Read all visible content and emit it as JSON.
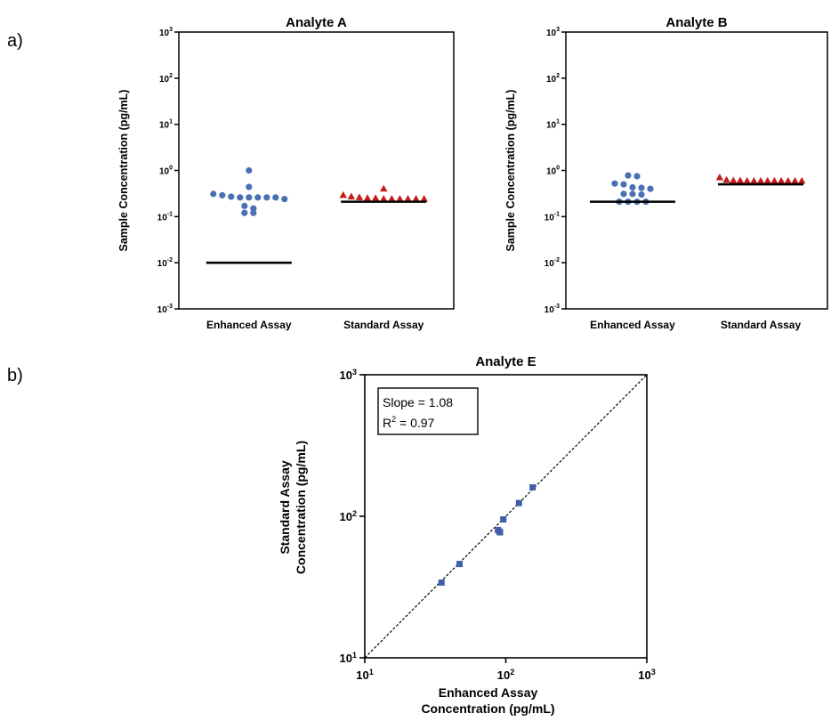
{
  "panel_labels": [
    "a)",
    "b)"
  ],
  "chart_data": [
    {
      "type": "scatter",
      "title": "Analyte A",
      "ylabel": "Sample Concentration (pg/mL)",
      "yscale": "log",
      "ylim": [
        0.001,
        1000
      ],
      "yticks": [
        {
          "base": "10",
          "exp": "3",
          "value": 1000
        },
        {
          "base": "10",
          "exp": "2",
          "value": 100
        },
        {
          "base": "10",
          "exp": "1",
          "value": 10
        },
        {
          "base": "10",
          "exp": "0",
          "value": 1
        },
        {
          "base": "10",
          "exp": "-1",
          "value": 0.1
        },
        {
          "base": "10",
          "exp": "-2",
          "value": 0.01
        },
        {
          "base": "10",
          "exp": "-3",
          "value": 0.001
        }
      ],
      "categories": [
        "Enhanced Assay",
        "Standard Assay"
      ],
      "series": [
        {
          "name": "Enhanced Assay",
          "marker": "circle",
          "color": "#4a6fb5",
          "values": [
            1.0,
            0.44,
            0.31,
            0.29,
            0.27,
            0.26,
            0.26,
            0.26,
            0.26,
            0.26,
            0.24,
            0.17,
            0.15,
            0.12,
            0.12
          ],
          "line": 0.01
        },
        {
          "name": "Standard Assay",
          "marker": "triangle",
          "color": "#c41a1a",
          "values": [
            0.4,
            0.29,
            0.27,
            0.26,
            0.25,
            0.25,
            0.24,
            0.24,
            0.24,
            0.24,
            0.24,
            0.24
          ],
          "line": 0.21
        }
      ]
    },
    {
      "type": "scatter",
      "title": "Analyte B",
      "ylabel": "Sample Concentration (pg/mL)",
      "yscale": "log",
      "ylim": [
        0.001,
        1000
      ],
      "yticks": [
        {
          "base": "10",
          "exp": "3",
          "value": 1000
        },
        {
          "base": "10",
          "exp": "2",
          "value": 100
        },
        {
          "base": "10",
          "exp": "1",
          "value": 10
        },
        {
          "base": "10",
          "exp": "0",
          "value": 1
        },
        {
          "base": "10",
          "exp": "-1",
          "value": 0.1
        },
        {
          "base": "10",
          "exp": "-2",
          "value": 0.01
        },
        {
          "base": "10",
          "exp": "-3",
          "value": 0.001
        }
      ],
      "categories": [
        "Enhanced Assay",
        "Standard Assay"
      ],
      "series": [
        {
          "name": "Enhanced Assay",
          "marker": "circle",
          "color": "#4a6fb5",
          "values": [
            0.78,
            0.75,
            0.52,
            0.5,
            0.43,
            0.42,
            0.4,
            0.31,
            0.31,
            0.3,
            0.21,
            0.21,
            0.21,
            0.21
          ],
          "line": 0.21
        },
        {
          "name": "Standard Assay",
          "marker": "triangle",
          "color": "#c41a1a",
          "values": [
            0.7,
            0.62,
            0.6,
            0.6,
            0.59,
            0.59,
            0.59,
            0.59,
            0.59,
            0.59,
            0.59,
            0.59,
            0.59
          ],
          "line": 0.5
        }
      ]
    },
    {
      "type": "scatter",
      "title": "Analyte  E",
      "xlabel": [
        "Enhanced Assay",
        "Concentration (pg/mL)"
      ],
      "ylabel": [
        "Standard  Assay",
        "Concentration (pg/mL)"
      ],
      "xscale": "log",
      "yscale": "log",
      "xlim": [
        10,
        1000
      ],
      "ylim": [
        10,
        1000
      ],
      "xticks": [
        {
          "base": "10",
          "exp": "1",
          "value": 10
        },
        {
          "base": "10",
          "exp": "2",
          "value": 100
        },
        {
          "base": "10",
          "exp": "3",
          "value": 1000
        }
      ],
      "yticks": [
        {
          "base": "10",
          "exp": "3",
          "value": 1000
        },
        {
          "base": "10",
          "exp": "2",
          "value": 100
        },
        {
          "base": "10",
          "exp": "1",
          "value": 10
        }
      ],
      "annotation": {
        "slope": "Slope = 1.08",
        "r2_prefix": "R",
        "r2_exp": "2",
        "r2_suffix": " = 0.97"
      },
      "identity_line": true,
      "marker_color": "#3f5fa8",
      "points": [
        {
          "x": 35,
          "y": 34
        },
        {
          "x": 47,
          "y": 46
        },
        {
          "x": 88,
          "y": 80
        },
        {
          "x": 90,
          "y": 78
        },
        {
          "x": 91,
          "y": 77
        },
        {
          "x": 96,
          "y": 95
        },
        {
          "x": 124,
          "y": 124
        },
        {
          "x": 155,
          "y": 160
        }
      ]
    }
  ]
}
